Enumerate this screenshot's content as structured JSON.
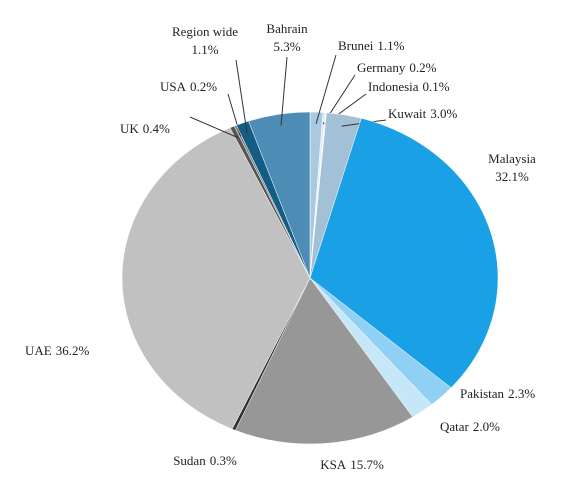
{
  "chart_data": {
    "type": "pie",
    "categories": [
      "Brunei",
      "Germany",
      "Indonesia",
      "Kuwait",
      "Malaysia",
      "Pakistan",
      "Qatar",
      "KSA",
      "Sudan",
      "UAE",
      "UK",
      "USA",
      "Region wide",
      "Bahrain"
    ],
    "values": [
      1.1,
      0.2,
      0.1,
      3.0,
      32.1,
      2.3,
      2.0,
      15.7,
      0.3,
      36.2,
      0.4,
      0.2,
      1.1,
      5.3
    ],
    "value_labels": [
      "1.1%",
      "0.2%",
      "0.1%",
      "3.0%",
      "32.1%",
      "2.3%",
      "2.0%",
      "15.7%",
      "0.3%",
      "36.2%",
      "0.4%",
      "0.2%",
      "1.1%",
      "5.3%"
    ],
    "colors": [
      "#a9c9e0",
      "#d9e8f3",
      "#eef5fa",
      "#a3c1d6",
      "#1aa0e4",
      "#8fd0f4",
      "#c6e7f8",
      "#979797",
      "#2f2f2f",
      "#c1c1c1",
      "#555555",
      "#7f7f7f",
      "#135c84",
      "#4d8db5"
    ]
  }
}
